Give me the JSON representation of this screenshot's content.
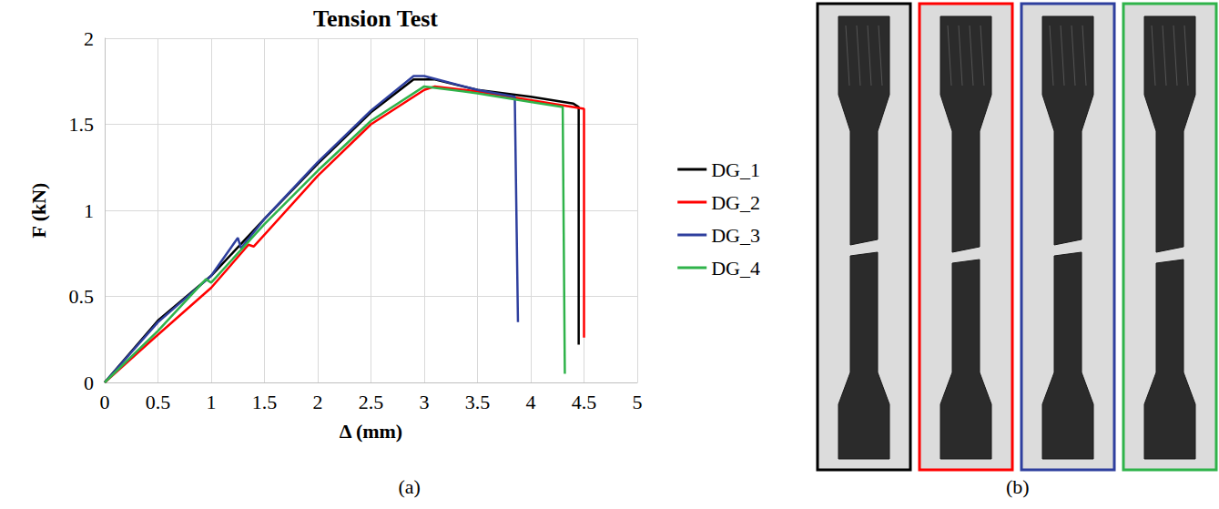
{
  "chart_data": {
    "type": "line",
    "title": "Tension Test",
    "x_label": "Δ (mm)",
    "y_label": "F (kN)",
    "xlim": [
      0,
      5
    ],
    "xticks": [
      0,
      0.5,
      1,
      1.5,
      2,
      2.5,
      3,
      3.5,
      4,
      4.5,
      5
    ],
    "ylim": [
      0,
      2
    ],
    "yticks": [
      0,
      0.5,
      1,
      1.5,
      2
    ],
    "grid": true,
    "legend": "right",
    "series": [
      {
        "name": "DG_1",
        "color": "#000000",
        "x": [
          0,
          0.5,
          1,
          1.5,
          2,
          2.5,
          2.9,
          3.1,
          3.5,
          4,
          4.4,
          4.45,
          4.45
        ],
        "values": [
          0,
          0.36,
          0.62,
          0.95,
          1.27,
          1.57,
          1.76,
          1.76,
          1.7,
          1.66,
          1.62,
          1.6,
          0.22
        ]
      },
      {
        "name": "DG_2",
        "color": "#ff0000",
        "x": [
          0,
          0.45,
          1,
          1.35,
          1.4,
          2,
          2.5,
          3,
          3.1,
          3.5,
          4,
          4.5,
          4.5
        ],
        "values": [
          0,
          0.25,
          0.55,
          0.8,
          0.79,
          1.2,
          1.5,
          1.7,
          1.72,
          1.69,
          1.64,
          1.59,
          0.26
        ]
      },
      {
        "name": "DG_3",
        "color": "#2e3f9e",
        "x": [
          0,
          0.5,
          1,
          1.25,
          1.28,
          1.5,
          2,
          2.5,
          2.9,
          3,
          3.5,
          3.85,
          3.88
        ],
        "values": [
          0,
          0.35,
          0.62,
          0.84,
          0.78,
          0.95,
          1.28,
          1.58,
          1.78,
          1.78,
          1.7,
          1.66,
          0.35
        ]
      },
      {
        "name": "DG_4",
        "color": "#2fb34a",
        "x": [
          0,
          0.5,
          0.95,
          1,
          1.5,
          2,
          2.5,
          3,
          3.5,
          4,
          4.3,
          4.32
        ],
        "values": [
          0,
          0.3,
          0.6,
          0.58,
          0.92,
          1.23,
          1.52,
          1.72,
          1.68,
          1.63,
          1.6,
          0.05
        ]
      }
    ]
  },
  "panels": [
    {
      "label": "(a)"
    },
    {
      "label": "(b)"
    }
  ]
}
